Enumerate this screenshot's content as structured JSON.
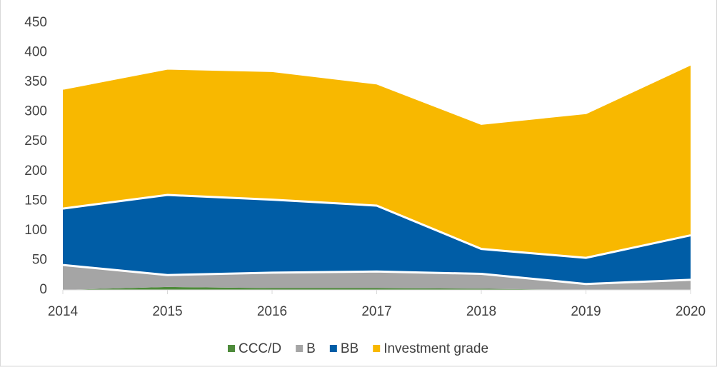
{
  "chart_data": {
    "type": "stacked_area",
    "categories": [
      "2014",
      "2015",
      "2016",
      "2017",
      "2018",
      "2019",
      "2020"
    ],
    "series": [
      {
        "name": "CCC/D",
        "color": "#4e8b3b",
        "values": [
          0,
          5,
          3,
          3,
          2,
          0,
          0
        ]
      },
      {
        "name": "B",
        "color": "#a5a5a5",
        "values": [
          42,
          20,
          26,
          28,
          25,
          10,
          17
        ]
      },
      {
        "name": "BB",
        "color": "#005da6",
        "values": [
          95,
          135,
          123,
          111,
          42,
          44,
          75
        ]
      },
      {
        "name": "Investment grade",
        "color": "#f8b800",
        "values": [
          202,
          213,
          217,
          206,
          211,
          244,
          288
        ]
      }
    ],
    "ylim": [
      0,
      450
    ],
    "yticks": [
      0,
      50,
      100,
      150,
      200,
      250,
      300,
      350,
      400,
      450
    ],
    "legend": "bottom"
  }
}
